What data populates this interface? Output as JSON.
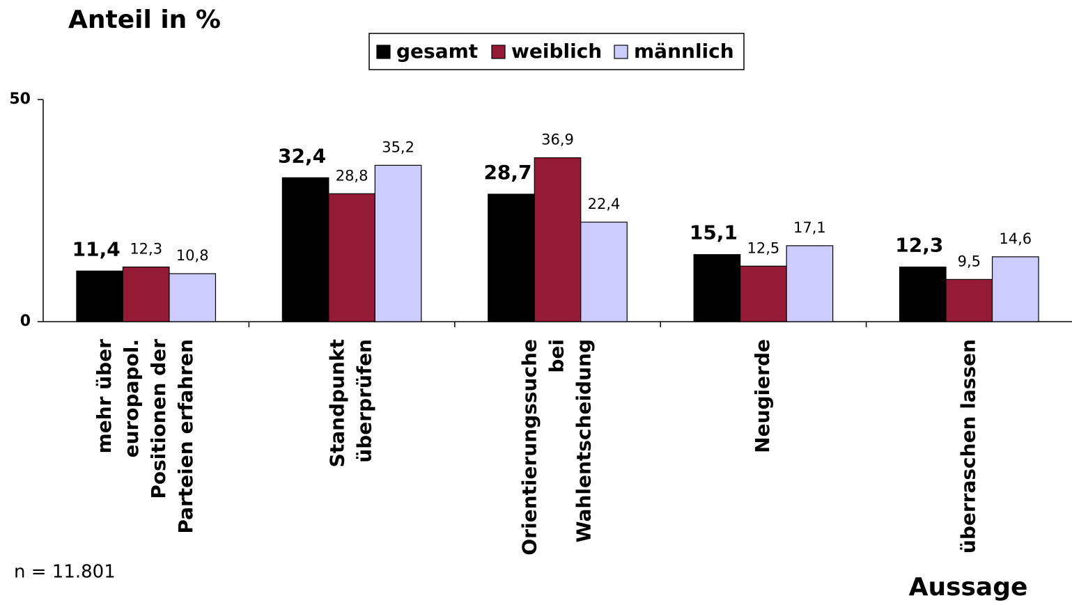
{
  "chart_data": {
    "type": "bar",
    "title": "Anteil in %",
    "x_label": "Aussage",
    "note": "n = 11.801",
    "categories": [
      "mehr über\neuropapol.\nPositionen der\nParteien erfahren",
      "Standpunkt\nüberprüfen",
      "Orientierungssuche\nbei\nWahlentscheidung",
      "Neugierde",
      "überraschen lassen"
    ],
    "series": [
      {
        "name": "gesamt",
        "color": "#000000",
        "values": [
          11.4,
          32.4,
          28.7,
          15.1,
          12.3
        ],
        "value_labels": [
          "11,4",
          "32,4",
          "28,7",
          "15,1",
          "12,3"
        ]
      },
      {
        "name": "weiblich",
        "color": "#951a36",
        "values": [
          12.3,
          28.8,
          36.9,
          12.5,
          9.5
        ],
        "value_labels": [
          "12,3",
          "28,8",
          "36,9",
          "12,5",
          "9,5"
        ]
      },
      {
        "name": "männlich",
        "color": "#ccccff",
        "values": [
          10.8,
          35.2,
          22.4,
          17.1,
          14.6
        ],
        "value_labels": [
          "10,8",
          "35,2",
          "22,4",
          "17,1",
          "14,6"
        ]
      }
    ],
    "ylim": [
      0,
      50
    ],
    "yticks": [
      0,
      50
    ]
  }
}
